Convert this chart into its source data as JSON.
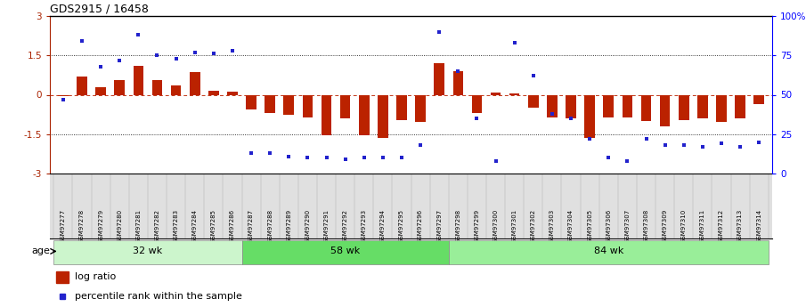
{
  "title": "GDS2915 / 16458",
  "samples": [
    "GSM97277",
    "GSM97278",
    "GSM97279",
    "GSM97280",
    "GSM97281",
    "GSM97282",
    "GSM97283",
    "GSM97284",
    "GSM97285",
    "GSM97286",
    "GSM97287",
    "GSM97288",
    "GSM97289",
    "GSM97290",
    "GSM97291",
    "GSM97292",
    "GSM97293",
    "GSM97294",
    "GSM97295",
    "GSM97296",
    "GSM97297",
    "GSM97298",
    "GSM97299",
    "GSM97300",
    "GSM97301",
    "GSM97302",
    "GSM97303",
    "GSM97304",
    "GSM97305",
    "GSM97306",
    "GSM97307",
    "GSM97308",
    "GSM97309",
    "GSM97310",
    "GSM97311",
    "GSM97312",
    "GSM97313",
    "GSM97314"
  ],
  "log_ratio": [
    -0.05,
    0.7,
    0.3,
    0.55,
    1.1,
    0.55,
    0.35,
    0.85,
    0.15,
    0.12,
    -0.55,
    -0.7,
    -0.75,
    -0.85,
    -1.55,
    -0.9,
    -1.55,
    -1.65,
    -0.95,
    -1.05,
    1.2,
    0.9,
    -0.7,
    0.1,
    0.05,
    -0.5,
    -0.85,
    -0.9,
    -1.65,
    -0.85,
    -0.85,
    -1.0,
    -1.2,
    -0.95,
    -0.9,
    -1.05,
    -0.9,
    -0.35
  ],
  "percentile": [
    47,
    84,
    68,
    72,
    88,
    75,
    73,
    77,
    76,
    78,
    13,
    13,
    11,
    10,
    10,
    9,
    10,
    10,
    10,
    18,
    90,
    65,
    35,
    8,
    83,
    62,
    38,
    35,
    22,
    10,
    8,
    22,
    18,
    18,
    17,
    19,
    17,
    20
  ],
  "groups": [
    {
      "label": "32 wk",
      "start": 0,
      "end": 9,
      "color": "#ccf5cc"
    },
    {
      "label": "58 wk",
      "start": 10,
      "end": 20,
      "color": "#66dd66"
    },
    {
      "label": "84 wk",
      "start": 21,
      "end": 37,
      "color": "#99ee99"
    }
  ],
  "ylim": [
    -3,
    3
  ],
  "y2lim": [
    0,
    100
  ],
  "yticks_left": [
    -3,
    -1.5,
    0,
    1.5,
    3
  ],
  "yticks_right": [
    0,
    25,
    50,
    75,
    100
  ],
  "y2ticklabels": [
    "0",
    "25",
    "50",
    "75",
    "100%"
  ],
  "bar_color": "#bb2200",
  "dot_color": "#2222cc",
  "bg_color": "#ffffff",
  "gray_area": "#e0e0e0",
  "age_label": "age",
  "legend_log": "log ratio",
  "legend_pct": "percentile rank within the sample"
}
